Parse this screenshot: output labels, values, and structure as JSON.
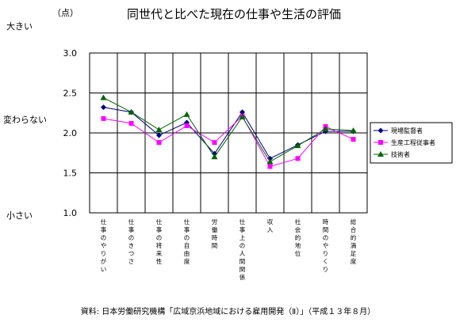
{
  "chart_data": {
    "type": "line",
    "title": "同世代と比べた現在の仕事や生活の評価",
    "unit_label": "（点）",
    "side_labels": {
      "top": "大きい",
      "middle": "変わらない",
      "bottom": "小さい"
    },
    "ylim": [
      1.0,
      3.0
    ],
    "yticks": [
      "1.0",
      "1.5",
      "2.0",
      "2.5",
      "3.0"
    ],
    "ytick_values": [
      1.0,
      1.5,
      2.0,
      2.5,
      3.0
    ],
    "grid": true,
    "legend_position": "right",
    "categories": [
      "仕事のやりがい",
      "仕事のきつさ",
      "仕事の将来性",
      "仕事の自由度",
      "労働時間",
      "仕事上の人間関係",
      "収入",
      "社会的地位",
      "時間のやりくり",
      "総合的満足度"
    ],
    "series": [
      {
        "name": "現場監督者",
        "color": "#000080",
        "marker": "diamond",
        "values": [
          2.32,
          2.26,
          1.97,
          2.13,
          1.74,
          2.26,
          1.68,
          1.85,
          2.02,
          2.02
        ]
      },
      {
        "name": "生産工程従事者",
        "color": "#ff00ff",
        "marker": "square",
        "values": [
          2.18,
          2.12,
          1.88,
          2.09,
          1.88,
          2.21,
          1.58,
          1.68,
          2.08,
          1.92
        ]
      },
      {
        "name": "技術者",
        "color": "#006400",
        "marker": "triangle",
        "values": [
          2.44,
          2.26,
          2.04,
          2.23,
          1.7,
          2.2,
          1.64,
          1.84,
          2.05,
          2.03
        ]
      }
    ]
  },
  "source_note": "資料: 日本労働研究機構「広域京浜地域における雇用開発（Ⅱ）」（平成１３年８月）"
}
